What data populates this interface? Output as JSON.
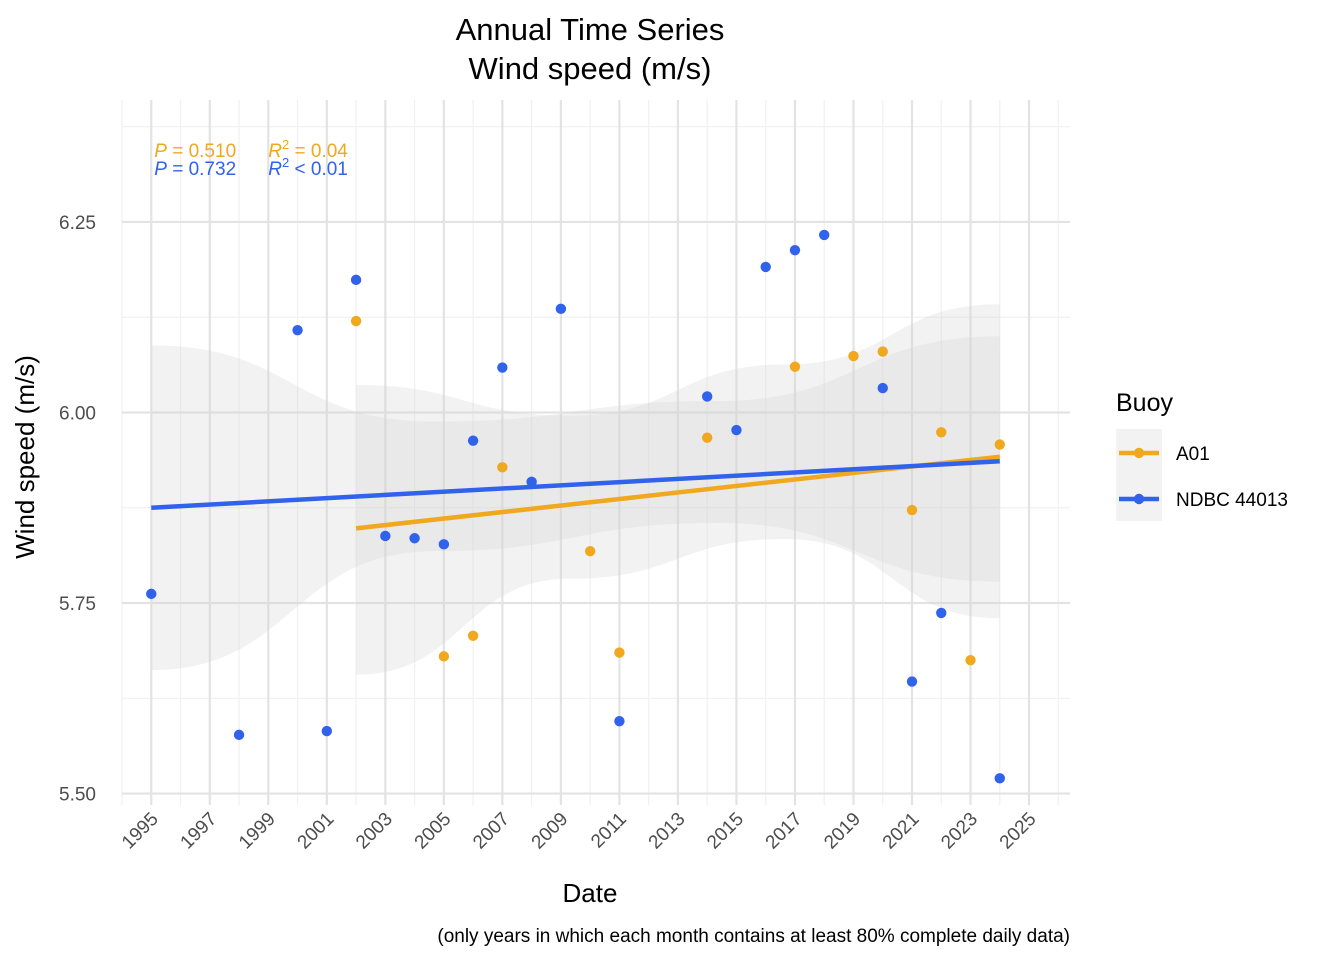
{
  "chart_data": {
    "type": "scatter",
    "title": "Annual Time Series",
    "subtitle": "Wind speed (m/s)",
    "xlabel": "Date",
    "ylabel": "Wind speed (m/s)",
    "caption": "(only years in which each month contains at least 80% complete daily data)",
    "xlim": [
      1994,
      2026.4
    ],
    "ylim": [
      5.485,
      6.41
    ],
    "x_ticks": [
      "1995",
      "1997",
      "1999",
      "2001",
      "2003",
      "2005",
      "2007",
      "2009",
      "2011",
      "2013",
      "2015",
      "2017",
      "2019",
      "2021",
      "2023",
      "2025"
    ],
    "y_ticks": [
      "5.50",
      "5.75",
      "6.00",
      "6.25"
    ],
    "grid": true,
    "legend": {
      "title": "Buoy",
      "position": "right"
    },
    "series": [
      {
        "name": "A01",
        "color": "#f0a81e",
        "points": [
          [
            2002,
            6.12
          ],
          [
            2005,
            5.68
          ],
          [
            2006,
            5.707
          ],
          [
            2007,
            5.928
          ],
          [
            2010,
            5.818
          ],
          [
            2011,
            5.685
          ],
          [
            2014,
            5.967
          ],
          [
            2017,
            6.06
          ],
          [
            2019,
            6.074
          ],
          [
            2020,
            6.08
          ],
          [
            2021,
            5.872
          ],
          [
            2022,
            5.974
          ],
          [
            2023,
            5.675
          ],
          [
            2024,
            5.958
          ]
        ],
        "trend": {
          "x": [
            2002,
            2024
          ],
          "y": [
            5.848,
            5.942
          ]
        },
        "band": {
          "lower": [
            5.656,
            5.782,
            5.834,
            5.73
          ],
          "upper": [
            6.036,
            5.996,
            6.063,
            6.142
          ]
        },
        "stats": {
          "p_label": "P",
          "p_text": " = 0.510",
          "r2_label": "R",
          "r2_sup": "2",
          "r2_text": " = 0.04"
        }
      },
      {
        "name": "NDBC 44013",
        "color": "#3062ec",
        "points": [
          [
            1995,
            5.762
          ],
          [
            1998,
            5.577
          ],
          [
            2000,
            6.108
          ],
          [
            2001,
            5.582
          ],
          [
            2002,
            6.174
          ],
          [
            2003,
            5.838
          ],
          [
            2004,
            5.835
          ],
          [
            2005,
            5.827
          ],
          [
            2006,
            5.963
          ],
          [
            2007,
            6.059
          ],
          [
            2008,
            5.909
          ],
          [
            2009,
            6.136
          ],
          [
            2011,
            5.595
          ],
          [
            2014,
            6.021
          ],
          [
            2015,
            5.977
          ],
          [
            2016,
            6.191
          ],
          [
            2017,
            6.213
          ],
          [
            2018,
            6.233
          ],
          [
            2020,
            6.032
          ],
          [
            2021,
            5.647
          ],
          [
            2022,
            5.737
          ],
          [
            2024,
            5.52
          ]
        ],
        "trend": {
          "x": [
            1995,
            2024
          ],
          "y": [
            5.875,
            5.936
          ]
        },
        "band": {
          "lower": [
            5.662,
            5.818,
            5.855,
            5.778
          ],
          "upper": [
            6.088,
            5.988,
            6.015,
            6.1
          ]
        },
        "stats": {
          "p_label": "P",
          "p_text": " = 0.732",
          "r2_label": "R",
          "r2_sup": "2",
          "r2_text": " < 0.01"
        }
      }
    ]
  }
}
